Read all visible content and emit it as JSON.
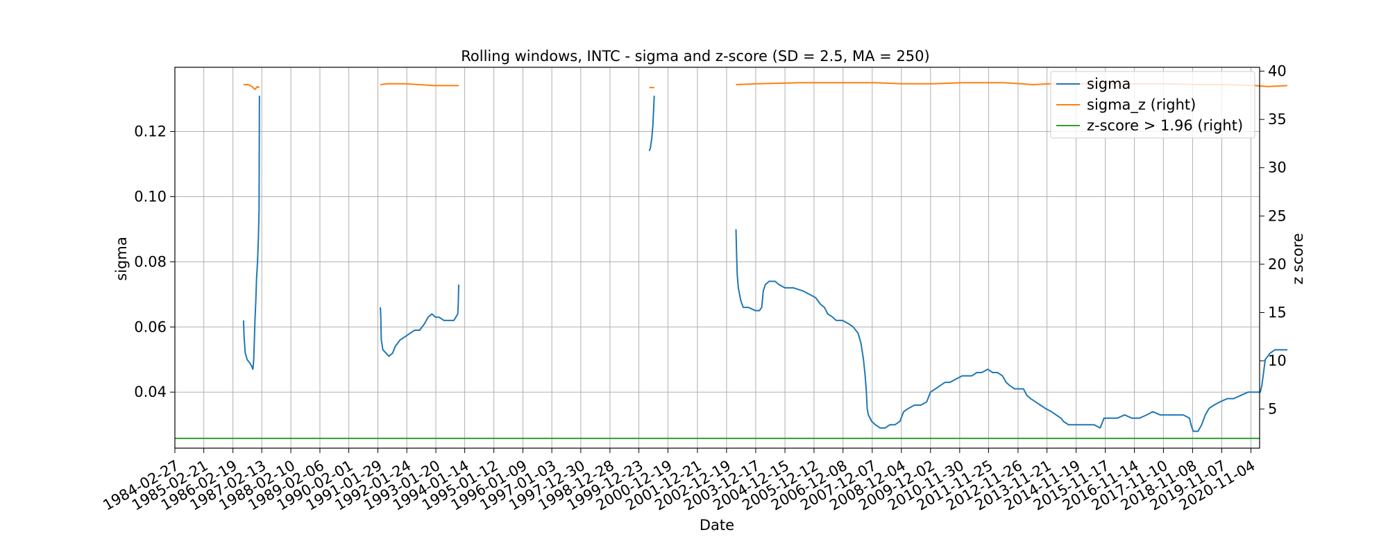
{
  "chart_data": {
    "type": "line",
    "title": "Rolling windows, INTC - sigma and z-score (SD = 2.5, MA = 250)",
    "xlabel": "Date",
    "ylabel_left": "sigma",
    "ylabel_right": "z score",
    "grid": true,
    "legend_position": "top-right",
    "xlim": [
      "1984-02-27",
      "2021-02-20"
    ],
    "ylim_left": [
      0.0228,
      0.1397
    ],
    "ylim_right": [
      0.95,
      40.4
    ],
    "x_ticks": [
      "1984-02-27",
      "1985-02-21",
      "1986-02-19",
      "1987-02-13",
      "1988-02-10",
      "1989-02-06",
      "1990-02-01",
      "1991-01-29",
      "1992-01-24",
      "1993-01-20",
      "1994-01-14",
      "1995-01-12",
      "1996-01-09",
      "1997-01-03",
      "1997-12-30",
      "1998-12-28",
      "1999-12-23",
      "2000-12-19",
      "2001-12-21",
      "2002-12-19",
      "2003-12-17",
      "2004-12-15",
      "2005-12-12",
      "2006-12-08",
      "2007-12-07",
      "2008-12-04",
      "2009-12-02",
      "2010-11-30",
      "2011-11-25",
      "2012-11-26",
      "2013-11-21",
      "2014-11-19",
      "2015-11-17",
      "2016-11-14",
      "2017-11-10",
      "2018-11-08",
      "2019-11-07",
      "2020-11-04"
    ],
    "y_ticks_left": [
      "0.04",
      "0.06",
      "0.08",
      "0.10",
      "0.12"
    ],
    "y_ticks_right": [
      "5",
      "10",
      "15",
      "20",
      "25",
      "30",
      "35",
      "40"
    ],
    "colors": {
      "sigma": "#1f77b4",
      "sigma_z": "#ff7f0e",
      "threshold": "#2ca02c"
    },
    "series": [
      {
        "name": "sigma",
        "axis": "left",
        "segments": [
          [
            [
              "1986-07-01",
              0.062
            ],
            [
              "1986-07-08",
              0.057
            ],
            [
              "1986-07-22",
              0.052
            ],
            [
              "1986-08-15",
              0.05
            ],
            [
              "1986-09-15",
              0.049
            ],
            [
              "1986-10-10",
              0.048
            ],
            [
              "1986-10-25",
              0.047
            ],
            [
              "1986-11-05",
              0.05
            ],
            [
              "1986-11-20",
              0.062
            ],
            [
              "1986-12-01",
              0.068
            ],
            [
              "1986-12-10",
              0.075
            ],
            [
              "1986-12-22",
              0.08
            ],
            [
              "1987-01-02",
              0.087
            ],
            [
              "1987-01-10",
              0.096
            ],
            [
              "1987-01-15",
              0.131
            ]
          ],
          [
            [
              "1991-03-01",
              0.066
            ],
            [
              "1991-03-06",
              0.063
            ],
            [
              "1991-03-12",
              0.056
            ],
            [
              "1991-04-01",
              0.053
            ],
            [
              "1991-05-10",
              0.052
            ],
            [
              "1991-06-15",
              0.051
            ],
            [
              "1991-08-01",
              0.052
            ],
            [
              "1991-09-01",
              0.054
            ],
            [
              "1991-11-01",
              0.056
            ],
            [
              "1992-01-01",
              0.057
            ],
            [
              "1992-03-01",
              0.058
            ],
            [
              "1992-05-01",
              0.059
            ],
            [
              "1992-07-01",
              0.059
            ],
            [
              "1992-09-01",
              0.061
            ],
            [
              "1992-10-15",
              0.063
            ],
            [
              "1992-12-01",
              0.064
            ],
            [
              "1993-01-15",
              0.063
            ],
            [
              "1993-03-01",
              0.063
            ],
            [
              "1993-05-01",
              0.062
            ],
            [
              "1993-07-01",
              0.062
            ],
            [
              "1993-09-01",
              0.062
            ],
            [
              "1993-10-20",
              0.064
            ],
            [
              "1993-10-26",
              0.067
            ],
            [
              "1993-11-01",
              0.073
            ]
          ],
          [
            [
              "2000-05-01",
              0.114
            ],
            [
              "2000-05-15",
              0.115
            ],
            [
              "2000-06-01",
              0.118
            ],
            [
              "2000-06-15",
              0.122
            ],
            [
              "2000-07-01",
              0.131
            ]
          ],
          [
            [
              "2003-04-15",
              0.09
            ],
            [
              "2003-04-22",
              0.083
            ],
            [
              "2003-05-01",
              0.076
            ],
            [
              "2003-05-15",
              0.072
            ],
            [
              "2003-06-15",
              0.068
            ],
            [
              "2003-07-15",
              0.066
            ],
            [
              "2003-09-15",
              0.066
            ],
            [
              "2003-12-15",
              0.065
            ],
            [
              "2004-02-01",
              0.065
            ],
            [
              "2004-03-01",
              0.066
            ],
            [
              "2004-03-20",
              0.071
            ],
            [
              "2004-04-15",
              0.073
            ],
            [
              "2004-06-01",
              0.074
            ],
            [
              "2004-08-15",
              0.074
            ],
            [
              "2004-10-01",
              0.073
            ],
            [
              "2004-12-15",
              0.072
            ],
            [
              "2005-04-01",
              0.072
            ],
            [
              "2005-08-01",
              0.071
            ],
            [
              "2005-10-15",
              0.07
            ],
            [
              "2006-01-01",
              0.069
            ],
            [
              "2006-03-01",
              0.067
            ],
            [
              "2006-04-20",
              0.066
            ],
            [
              "2006-06-01",
              0.064
            ],
            [
              "2006-08-01",
              0.063
            ],
            [
              "2006-09-15",
              0.062
            ],
            [
              "2006-12-01",
              0.062
            ],
            [
              "2007-02-15",
              0.061
            ],
            [
              "2007-04-15",
              0.06
            ],
            [
              "2007-06-15",
              0.058
            ],
            [
              "2007-07-20",
              0.055
            ],
            [
              "2007-08-20",
              0.05
            ],
            [
              "2007-09-10",
              0.045
            ],
            [
              "2007-09-25",
              0.04
            ],
            [
              "2007-10-05",
              0.035
            ],
            [
              "2007-10-20",
              0.033
            ],
            [
              "2007-12-01",
              0.031
            ],
            [
              "2008-01-15",
              0.03
            ],
            [
              "2008-03-15",
              0.029
            ],
            [
              "2008-05-15",
              0.029
            ],
            [
              "2008-07-15",
              0.03
            ],
            [
              "2008-09-15",
              0.03
            ],
            [
              "2008-11-15",
              0.031
            ],
            [
              "2009-01-01",
              0.034
            ],
            [
              "2009-03-01",
              0.035
            ],
            [
              "2009-05-15",
              0.036
            ],
            [
              "2009-08-01",
              0.036
            ],
            [
              "2009-10-15",
              0.037
            ],
            [
              "2009-12-01",
              0.04
            ],
            [
              "2010-02-01",
              0.041
            ],
            [
              "2010-04-01",
              0.042
            ],
            [
              "2010-06-01",
              0.043
            ],
            [
              "2010-08-01",
              0.043
            ],
            [
              "2010-10-15",
              0.044
            ],
            [
              "2011-01-01",
              0.045
            ],
            [
              "2011-03-01",
              0.045
            ],
            [
              "2011-05-01",
              0.045
            ],
            [
              "2011-07-01",
              0.046
            ],
            [
              "2011-09-01",
              0.046
            ],
            [
              "2011-11-15",
              0.047
            ],
            [
              "2012-01-15",
              0.046
            ],
            [
              "2012-03-15",
              0.046
            ],
            [
              "2012-05-15",
              0.045
            ],
            [
              "2012-07-01",
              0.043
            ],
            [
              "2012-08-15",
              0.042
            ],
            [
              "2012-10-15",
              0.041
            ],
            [
              "2012-12-15",
              0.041
            ],
            [
              "2013-02-01",
              0.041
            ],
            [
              "2013-03-15",
              0.039
            ],
            [
              "2013-05-01",
              0.038
            ],
            [
              "2013-07-01",
              0.037
            ],
            [
              "2013-09-01",
              0.036
            ],
            [
              "2013-11-01",
              0.035
            ],
            [
              "2014-01-15",
              0.034
            ],
            [
              "2014-03-15",
              0.033
            ],
            [
              "2014-05-15",
              0.032
            ],
            [
              "2014-06-15",
              0.031
            ],
            [
              "2014-08-15",
              0.03
            ],
            [
              "2014-11-15",
              0.03
            ],
            [
              "2015-03-15",
              0.03
            ],
            [
              "2015-07-01",
              0.03
            ],
            [
              "2015-09-15",
              0.029
            ],
            [
              "2015-11-01",
              0.032
            ],
            [
              "2016-01-15",
              0.032
            ],
            [
              "2016-04-15",
              0.032
            ],
            [
              "2016-07-15",
              0.033
            ],
            [
              "2016-10-15",
              0.032
            ],
            [
              "2017-01-15",
              0.032
            ],
            [
              "2017-04-15",
              0.033
            ],
            [
              "2017-07-01",
              0.034
            ],
            [
              "2017-10-01",
              0.033
            ],
            [
              "2018-01-15",
              0.033
            ],
            [
              "2018-04-15",
              0.033
            ],
            [
              "2018-07-15",
              0.033
            ],
            [
              "2018-10-01",
              0.032
            ],
            [
              "2018-10-20",
              0.03
            ],
            [
              "2018-11-15",
              0.028
            ],
            [
              "2019-01-15",
              0.028
            ],
            [
              "2019-03-01",
              0.03
            ],
            [
              "2019-04-15",
              0.033
            ],
            [
              "2019-06-01",
              0.035
            ],
            [
              "2019-08-01",
              0.036
            ],
            [
              "2019-10-15",
              0.037
            ],
            [
              "2020-01-15",
              0.038
            ],
            [
              "2020-04-01",
              0.038
            ],
            [
              "2020-07-01",
              0.039
            ],
            [
              "2020-10-01",
              0.04
            ],
            [
              "2020-11-15",
              0.04
            ],
            [
              "2021-01-15",
              0.04
            ],
            [
              "2021-03-01",
              0.04
            ],
            [
              "2021-03-20",
              0.042
            ],
            [
              "2021-04-10",
              0.046
            ],
            [
              "2021-05-01",
              0.05
            ],
            [
              "2021-06-01",
              0.051
            ],
            [
              "2021-07-01",
              0.052
            ],
            [
              "2021-09-01",
              0.053
            ],
            [
              "2021-12-01",
              0.053
            ],
            [
              "2022-02-01",
              0.053
            ]
          ]
        ]
      },
      {
        "name": "sigma_z (right)",
        "axis": "right",
        "segments": [
          [
            [
              "1986-07-01",
              38.6
            ],
            [
              "1986-09-01",
              38.6
            ],
            [
              "1986-10-15",
              38.4
            ],
            [
              "1986-11-20",
              38.1
            ],
            [
              "1986-12-20",
              38.4
            ],
            [
              "1987-01-15",
              38.3
            ]
          ],
          [
            [
              "1991-03-01",
              38.6
            ],
            [
              "1991-06-01",
              38.7
            ],
            [
              "1992-01-01",
              38.7
            ],
            [
              "1992-07-01",
              38.6
            ],
            [
              "1993-01-01",
              38.5
            ],
            [
              "1993-06-01",
              38.5
            ],
            [
              "1993-11-01",
              38.5
            ]
          ],
          [
            [
              "2000-05-01",
              38.3
            ],
            [
              "2000-07-01",
              38.3
            ]
          ],
          [
            [
              "2003-04-15",
              38.6
            ],
            [
              "2004-01-01",
              38.7
            ],
            [
              "2005-06-01",
              38.8
            ],
            [
              "2007-01-01",
              38.8
            ],
            [
              "2008-01-01",
              38.8
            ],
            [
              "2009-01-01",
              38.7
            ],
            [
              "2010-01-01",
              38.7
            ],
            [
              "2011-01-01",
              38.8
            ],
            [
              "2012-01-01",
              38.8
            ],
            [
              "2012-06-01",
              38.8
            ],
            [
              "2013-01-01",
              38.7
            ],
            [
              "2013-06-01",
              38.6
            ],
            [
              "2014-01-01",
              38.7
            ],
            [
              "2015-01-01",
              38.7
            ],
            [
              "2016-01-01",
              38.7
            ],
            [
              "2017-01-01",
              38.7
            ],
            [
              "2018-01-01",
              38.7
            ],
            [
              "2019-01-01",
              38.6
            ],
            [
              "2020-01-01",
              38.6
            ],
            [
              "2021-01-01",
              38.5
            ],
            [
              "2021-06-01",
              38.4
            ],
            [
              "2022-02-01",
              38.5
            ]
          ]
        ]
      },
      {
        "name": "z-score > 1.96 (right)",
        "axis": "right",
        "segments": [
          [
            [
              "1984-02-27",
              1.96
            ],
            [
              "2021-02-20",
              1.96
            ]
          ]
        ]
      }
    ]
  }
}
